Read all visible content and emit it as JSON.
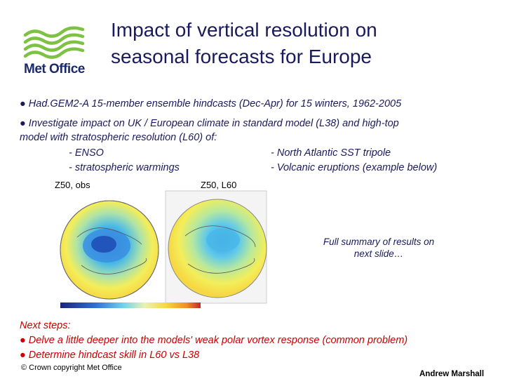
{
  "logo": {
    "text": "Met Office",
    "color": "#7dc242"
  },
  "title": {
    "line1": "Impact of vertical resolution on",
    "line2": "seasonal forecasts for Europe"
  },
  "bullets": {
    "b1": "● Had.GEM2-A 15-member ensemble hindcasts (Dec-Apr) for 15 winters, 1962-2005",
    "b2_line1": "● Investigate impact on UK / European climate in standard model (L38) and high-top",
    "b2_line2": "model with stratospheric resolution (L60) of:",
    "items": {
      "enso": "- ENSO",
      "sst": "- North Atlantic SST tripole",
      "strat": "- stratospheric warmings",
      "volc": "- Volcanic eruptions (example below)"
    }
  },
  "maps": {
    "obs_label": "Z50, obs",
    "l60_label": "Z50, L60"
  },
  "summary": {
    "line1": "Full summary of results on",
    "line2": "next slide…"
  },
  "next_steps": {
    "heading": "Next steps:",
    "step1": "● Delve a little deeper into the models' weak polar vortex response (common problem)",
    "step2": "● Determine hindcast skill in L60 vs L38"
  },
  "footer": {
    "copyright": "© Crown copyright   Met Office",
    "author": "Andrew Marshall"
  }
}
